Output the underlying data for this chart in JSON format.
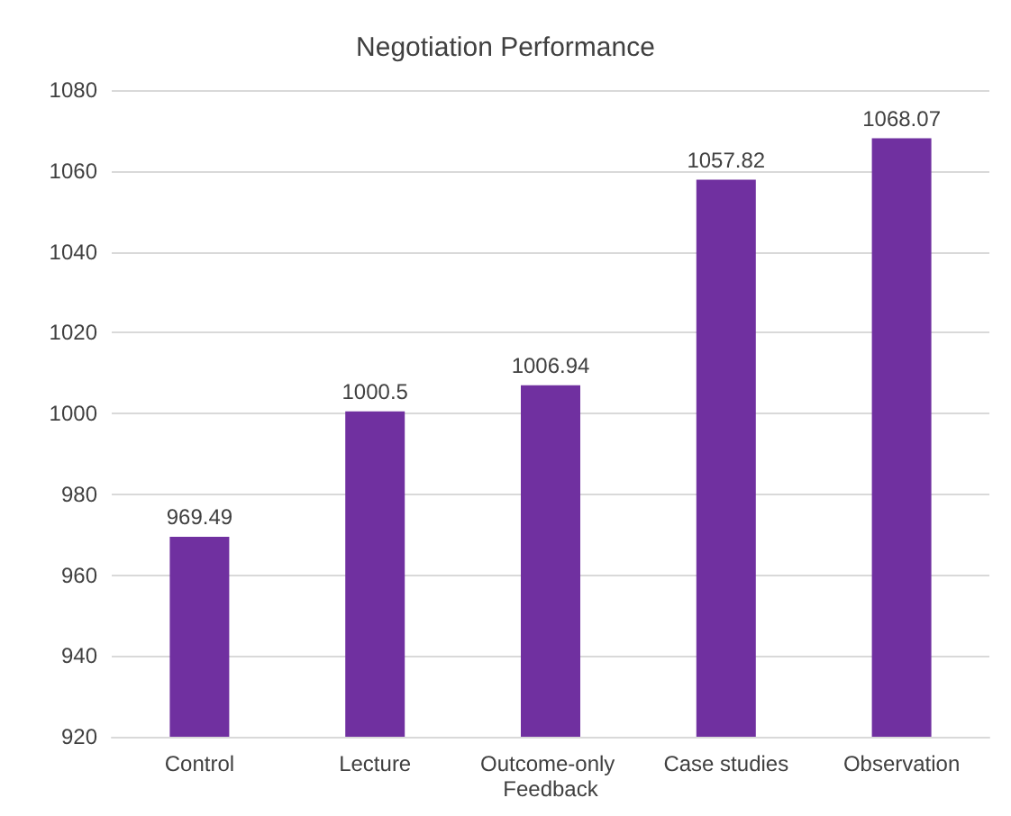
{
  "chart_data": {
    "type": "bar",
    "title": "Negotiation Performance",
    "categories": [
      "Control",
      "Lecture",
      "Outcome-only Feedback",
      "Case studies",
      "Observation"
    ],
    "values": [
      969.49,
      1000.5,
      1006.94,
      1057.82,
      1068.07
    ],
    "color": "#7030a0",
    "ylim": [
      920,
      1080
    ],
    "yticks": [
      920,
      940,
      960,
      980,
      1000,
      1020,
      1040,
      1060,
      1080
    ],
    "grid": "y",
    "data_labels": true
  }
}
